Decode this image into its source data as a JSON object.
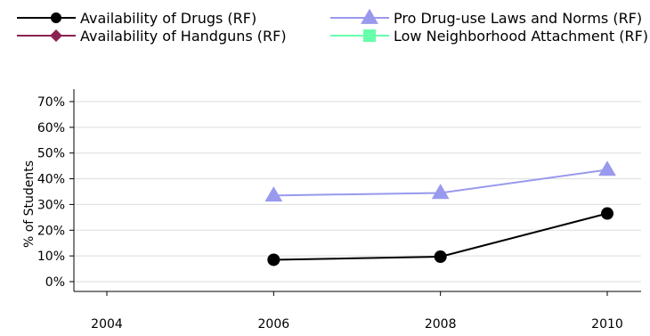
{
  "chart_data": {
    "type": "line",
    "title": "",
    "xlabel": "",
    "ylabel": "% of Students",
    "x": [
      "2004",
      "2006",
      "2008",
      "2010"
    ],
    "xlim": [
      2004,
      2010
    ],
    "ylim": [
      0,
      70
    ],
    "y_ticks": [
      "0%",
      "10%",
      "20%",
      "30%",
      "40%",
      "50%",
      "60%",
      "70%"
    ],
    "grid": "horizontal",
    "legend_position": "top",
    "series": [
      {
        "name": "Availability of Drugs (RF)",
        "color": "#000000",
        "marker": "circle",
        "values": [
          null,
          8.5,
          9.7,
          26.5
        ]
      },
      {
        "name": "Availability of Handguns (RF)",
        "color": "#8B2252",
        "marker": "diamond",
        "values": [
          null,
          null,
          null,
          null
        ]
      },
      {
        "name": "Pro Drug-use Laws and Norms (RF)",
        "color": "#9999EE",
        "marker": "triangle",
        "values": [
          null,
          33.5,
          34.5,
          43.5
        ]
      },
      {
        "name": "Low Neighborhood Attachment (RF)",
        "color": "#66FFAA",
        "marker": "square",
        "values": [
          null,
          null,
          null,
          null
        ]
      }
    ]
  }
}
